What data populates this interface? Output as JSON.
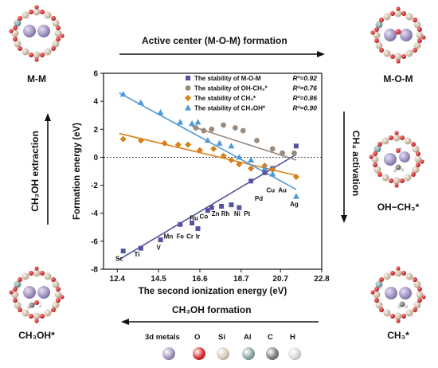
{
  "steps": {
    "mm": "M-M",
    "mom": "M-O-M",
    "ohch3": "OH−CH₃*",
    "ch3": "CH₃*",
    "ch3oh": "CH₃OH*"
  },
  "arrows": {
    "top": "Active center (M-O-M) formation",
    "right": "CH₄ activation",
    "bottom": "CH₃OH formation",
    "left": "CH₃OH extraction"
  },
  "atom_legend": {
    "items": [
      {
        "label": "3d metals",
        "color": "#9d8fb8"
      },
      {
        "label": "O",
        "color": "#d42a2a"
      },
      {
        "label": "Si",
        "color": "#d9c7b4"
      },
      {
        "label": "Al",
        "color": "#87a3a3"
      },
      {
        "label": "C",
        "color": "#7a7a7a"
      },
      {
        "label": "H",
        "color": "#d8d8d8"
      }
    ]
  },
  "chart_data": {
    "type": "scatter",
    "xlabel": "The second ionization energy (eV)",
    "ylabel": "Formation energy (eV)",
    "xlim": [
      11.7,
      22.8
    ],
    "ylim": [
      -8,
      6
    ],
    "xticks": [
      "12.4",
      "14.5",
      "16.6",
      "18.7",
      "20.7",
      "22.8"
    ],
    "xtick_values": [
      12.4,
      14.5,
      16.6,
      18.7,
      20.7,
      22.8
    ],
    "yticks": [
      "-8",
      "-6",
      "-4",
      "-2",
      "0",
      "2",
      "4",
      "6"
    ],
    "ytick_values": [
      -8,
      -6,
      -4,
      -2,
      0,
      2,
      4,
      6
    ],
    "reference_line_y": 0,
    "legend_position": "top-right",
    "series": [
      {
        "name": "The stability of M-O-M",
        "r2": "R²=0.92",
        "color": "#5454a0",
        "marker": "square",
        "x": [
          12.7,
          13.6,
          14.6,
          15.6,
          16.2,
          16.5,
          17.0,
          17.2,
          17.7,
          18.2,
          18.6,
          19.2,
          19.9,
          20.3,
          21.5
        ],
        "y": [
          -6.7,
          -6.5,
          -5.9,
          -4.8,
          -4.7,
          -5.1,
          -3.8,
          -3.6,
          -3.5,
          -3.4,
          -3.6,
          -1.7,
          -1.1,
          -0.8,
          0.8
        ],
        "line": {
          "x": [
            12.5,
            21.5
          ],
          "y": [
            -7.3,
            0.2
          ]
        }
      },
      {
        "name": "The stability of OH-CH₃*",
        "r2": "R²=0.76",
        "color": "#9a8a7e",
        "marker": "circle",
        "x": [
          16.4,
          16.8,
          17.2,
          17.8,
          18.4,
          18.8,
          19.5,
          20.3,
          20.8,
          21.4
        ],
        "y": [
          2.1,
          1.9,
          2.0,
          2.3,
          2.1,
          1.9,
          1.2,
          0.6,
          0.3,
          0.3
        ],
        "line": {
          "x": [
            16.2,
            21.5
          ],
          "y": [
            2.2,
            -0.2
          ]
        }
      },
      {
        "name": "The stability of CH₃*",
        "r2": "R²=0.86",
        "color": "#d8801a",
        "marker": "diamond",
        "x": [
          12.7,
          13.6,
          14.8,
          15.5,
          16.0,
          16.6,
          17.3,
          17.8,
          18.2,
          18.6,
          19.2,
          19.9,
          20.3,
          21.5
        ],
        "y": [
          1.3,
          1.2,
          1.0,
          0.9,
          0.9,
          0.5,
          0.6,
          0.1,
          -0.2,
          -0.5,
          -0.8,
          -0.6,
          -0.9,
          -1.4
        ],
        "line": {
          "x": [
            12.5,
            21.5
          ],
          "y": [
            1.7,
            -1.3
          ]
        }
      },
      {
        "name": "The stability of CH₃OH*",
        "r2": "R²=0.90",
        "color": "#4f9ad6",
        "marker": "triangle",
        "x": [
          12.7,
          13.6,
          14.6,
          15.6,
          16.2,
          16.5,
          17.0,
          17.6,
          18.2,
          18.6,
          19.2,
          19.9,
          20.3,
          21.5
        ],
        "y": [
          4.5,
          3.9,
          3.2,
          2.5,
          2.4,
          2.5,
          1.2,
          1.0,
          0.8,
          0.0,
          -0.2,
          -0.8,
          -1.2,
          -2.8
        ],
        "line": {
          "x": [
            12.5,
            21.5
          ],
          "y": [
            4.6,
            -2.3
          ]
        }
      }
    ],
    "point_labels": [
      {
        "text": "Sc",
        "x": 12.5,
        "y": -7.4
      },
      {
        "text": "Ti",
        "x": 13.4,
        "y": -7.1
      },
      {
        "text": "V",
        "x": 14.5,
        "y": -6.6
      },
      {
        "text": "Mn",
        "x": 15.0,
        "y": -5.8
      },
      {
        "text": "Fe",
        "x": 15.6,
        "y": -5.8
      },
      {
        "text": "Cr",
        "x": 16.1,
        "y": -5.8
      },
      {
        "text": "Ir",
        "x": 16.5,
        "y": -5.8
      },
      {
        "text": "Ru",
        "x": 16.3,
        "y": -4.5
      },
      {
        "text": "Co",
        "x": 16.8,
        "y": -4.4
      },
      {
        "text": "Zn",
        "x": 17.4,
        "y": -4.2
      },
      {
        "text": "Rh",
        "x": 17.9,
        "y": -4.2
      },
      {
        "text": "Ni",
        "x": 18.5,
        "y": -4.2
      },
      {
        "text": "Pt",
        "x": 19.0,
        "y": -4.2
      },
      {
        "text": "Pd",
        "x": 19.6,
        "y": -3.1
      },
      {
        "text": "Cu",
        "x": 20.2,
        "y": -2.5
      },
      {
        "text": "Au",
        "x": 20.8,
        "y": -2.5
      },
      {
        "text": "Ag",
        "x": 21.4,
        "y": -3.5
      }
    ]
  }
}
